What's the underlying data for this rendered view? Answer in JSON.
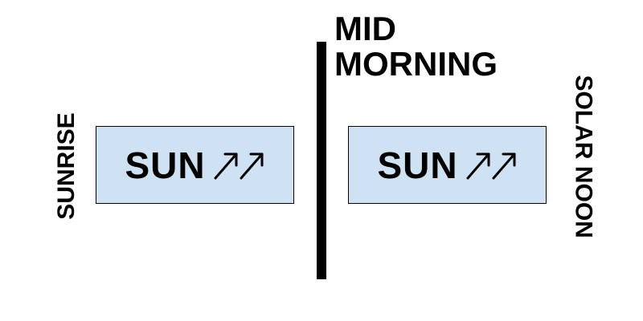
{
  "labels": {
    "sunrise": "SUNRISE",
    "mid_morning_line1": "MID",
    "mid_morning_line2": "MORNING",
    "solar_noon": "SOLAR NOON"
  },
  "boxes": [
    {
      "text": "SUN",
      "icon": "double-up-right-arrow-icon"
    },
    {
      "text": "SUN",
      "icon": "double-up-right-arrow-icon"
    }
  ],
  "colors": {
    "box_fill": "#cfe2f3",
    "divider": "#000000",
    "text": "#000000"
  }
}
